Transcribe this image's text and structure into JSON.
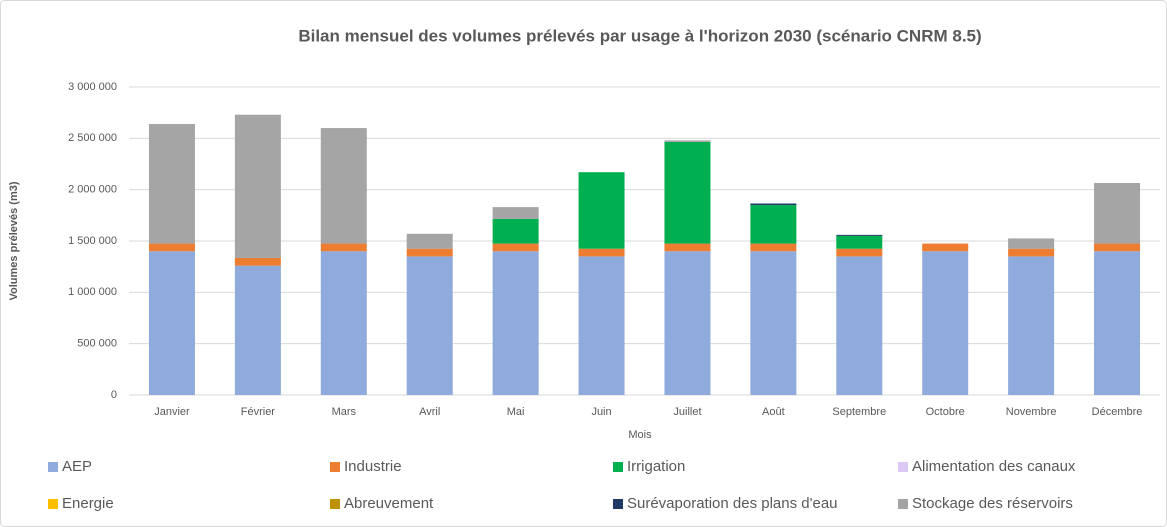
{
  "chart_data": {
    "type": "stacked_bar",
    "title": "Bilan mensuel des volumes prélevés par usage à l'horizon 2030 (scénario CNRM 8.5)",
    "x_label": "Mois",
    "y_label": "Volumes prélevés (m3)",
    "categories": [
      "Janvier",
      "Février",
      "Mars",
      "Avril",
      "Mai",
      "Juin",
      "Juillet",
      "Août",
      "Septembre",
      "Octobre",
      "Novembre",
      "Décembre"
    ],
    "series": [
      {
        "name": "AEP",
        "color": "#8faadc",
        "values": [
          1400000,
          1260000,
          1400000,
          1350000,
          1400000,
          1350000,
          1400000,
          1400000,
          1350000,
          1400000,
          1350000,
          1400000
        ]
      },
      {
        "name": "Industrie",
        "color": "#ed7d31",
        "values": [
          75000,
          75000,
          75000,
          75000,
          75000,
          75000,
          75000,
          75000,
          75000,
          75000,
          75000,
          75000
        ]
      },
      {
        "name": "Irrigation",
        "color": "#00b050",
        "values": [
          0,
          0,
          0,
          0,
          240000,
          745000,
          990000,
          375000,
          125000,
          0,
          0,
          0
        ]
      },
      {
        "name": "Alimentation des canaux",
        "color": "#dcc8f5",
        "values": [
          0,
          0,
          0,
          0,
          0,
          0,
          0,
          0,
          0,
          0,
          0,
          0
        ]
      },
      {
        "name": "Energie",
        "color": "#ffc000",
        "values": [
          0,
          0,
          0,
          0,
          0,
          0,
          0,
          0,
          0,
          0,
          0,
          0
        ]
      },
      {
        "name": "Abreuvement",
        "color": "#bf9000",
        "values": [
          0,
          0,
          0,
          0,
          0,
          0,
          0,
          0,
          0,
          0,
          0,
          0
        ]
      },
      {
        "name": "Surévaporation des plans d'eau",
        "color": "#203864",
        "values": [
          0,
          0,
          0,
          0,
          0,
          0,
          0,
          15000,
          10000,
          0,
          0,
          0
        ]
      },
      {
        "name": "Stockage des réservoirs",
        "color": "#a5a5a5",
        "values": [
          1165000,
          1395000,
          1125000,
          145000,
          115000,
          0,
          15000,
          0,
          0,
          0,
          100000,
          590000
        ]
      }
    ],
    "ylim": [
      0,
      3000000
    ],
    "yticks": [
      0,
      {
        "value": 500000,
        "label": "500 000"
      },
      {
        "value": 1000000,
        "label": "1 000 000"
      },
      {
        "value": 1500000,
        "label": "1 500 000"
      },
      {
        "value": 2000000,
        "label": "2 000 000"
      },
      {
        "value": 2500000,
        "label": "2 500 000"
      },
      {
        "value": 3000000,
        "label": "3 000 000"
      }
    ],
    "grid": true,
    "legend": "bottom"
  }
}
